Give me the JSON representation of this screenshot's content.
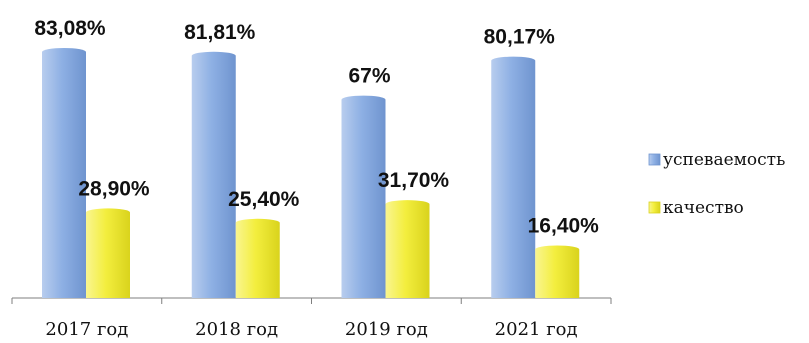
{
  "chart_data": {
    "type": "bar",
    "categories": [
      "2017 год",
      "2018 год",
      "2019 год",
      "2021 год"
    ],
    "series": [
      {
        "name": "успеваемость",
        "values": [
          83.08,
          81.81,
          67,
          80.17
        ],
        "labels": [
          "83,08%",
          "81,81%",
          "67%",
          "80,17%"
        ],
        "color": "#8fb2e6"
      },
      {
        "name": "качество",
        "values": [
          28.9,
          25.4,
          31.7,
          16.4
        ],
        "labels": [
          "28,90%",
          "25,40%",
          "31,70%",
          "16,40%"
        ],
        "color": "#f5f04a"
      }
    ],
    "ylim": [
      0,
      90
    ],
    "grid": false,
    "legend_position": "right"
  }
}
